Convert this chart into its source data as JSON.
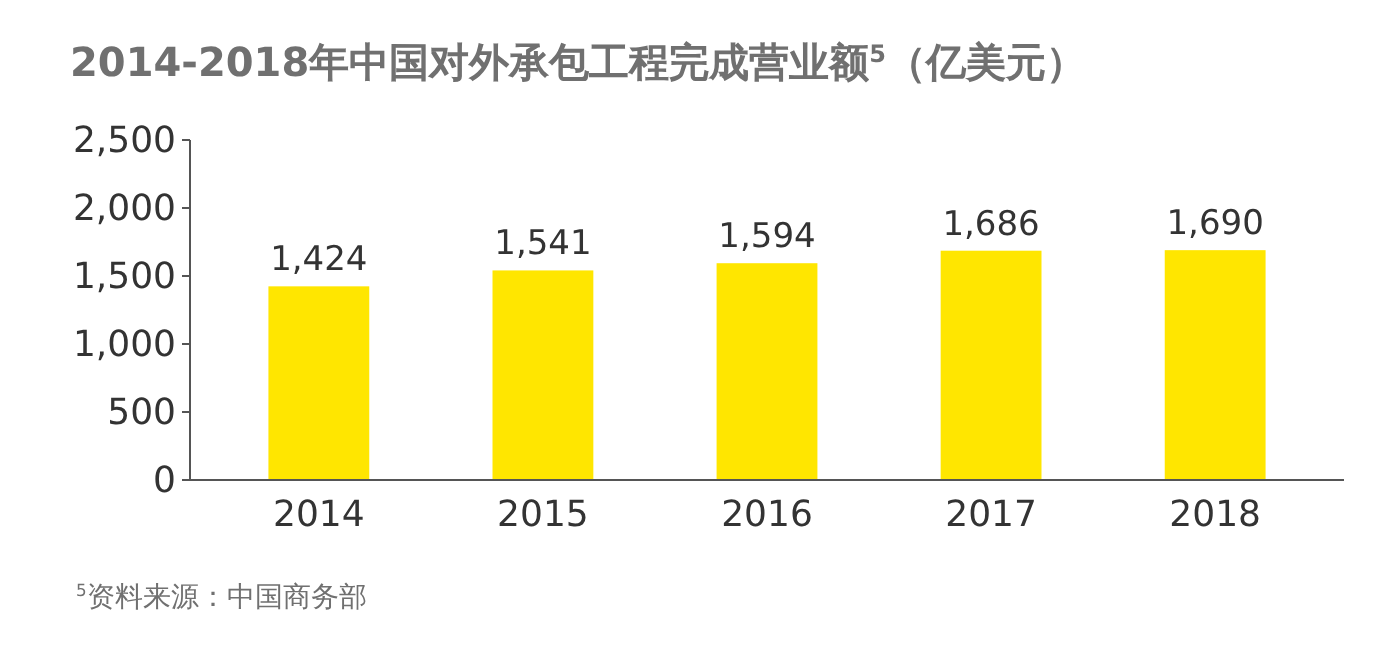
{
  "chart_data": {
    "type": "bar",
    "title": "2014-2018年中国对外承包工程完成营业额$^{5}$（亿美元）",
    "categories": [
      "2014",
      "2015",
      "2016",
      "2017",
      "2018"
    ],
    "values": [
      1424,
      1541,
      1594,
      1686,
      1690
    ],
    "color": "#ffe600",
    "ylim": [
      0,
      2500
    ],
    "yticks": [
      {
        "value": 0,
        "label": "0"
      },
      {
        "value": 500,
        "label": "500"
      },
      {
        "value": 1000,
        "label": "1,000"
      },
      {
        "value": 1500,
        "label": "1,500"
      },
      {
        "value": 2000,
        "label": "2,000"
      },
      {
        "value": 2500,
        "label": "2,500"
      }
    ],
    "value_labels": [
      "1,424",
      "1,541",
      "1,594",
      "1,686",
      "1,690"
    ],
    "grid": false,
    "annotations": [
      "$^{5}$资料来源：中国商务部"
    ]
  }
}
